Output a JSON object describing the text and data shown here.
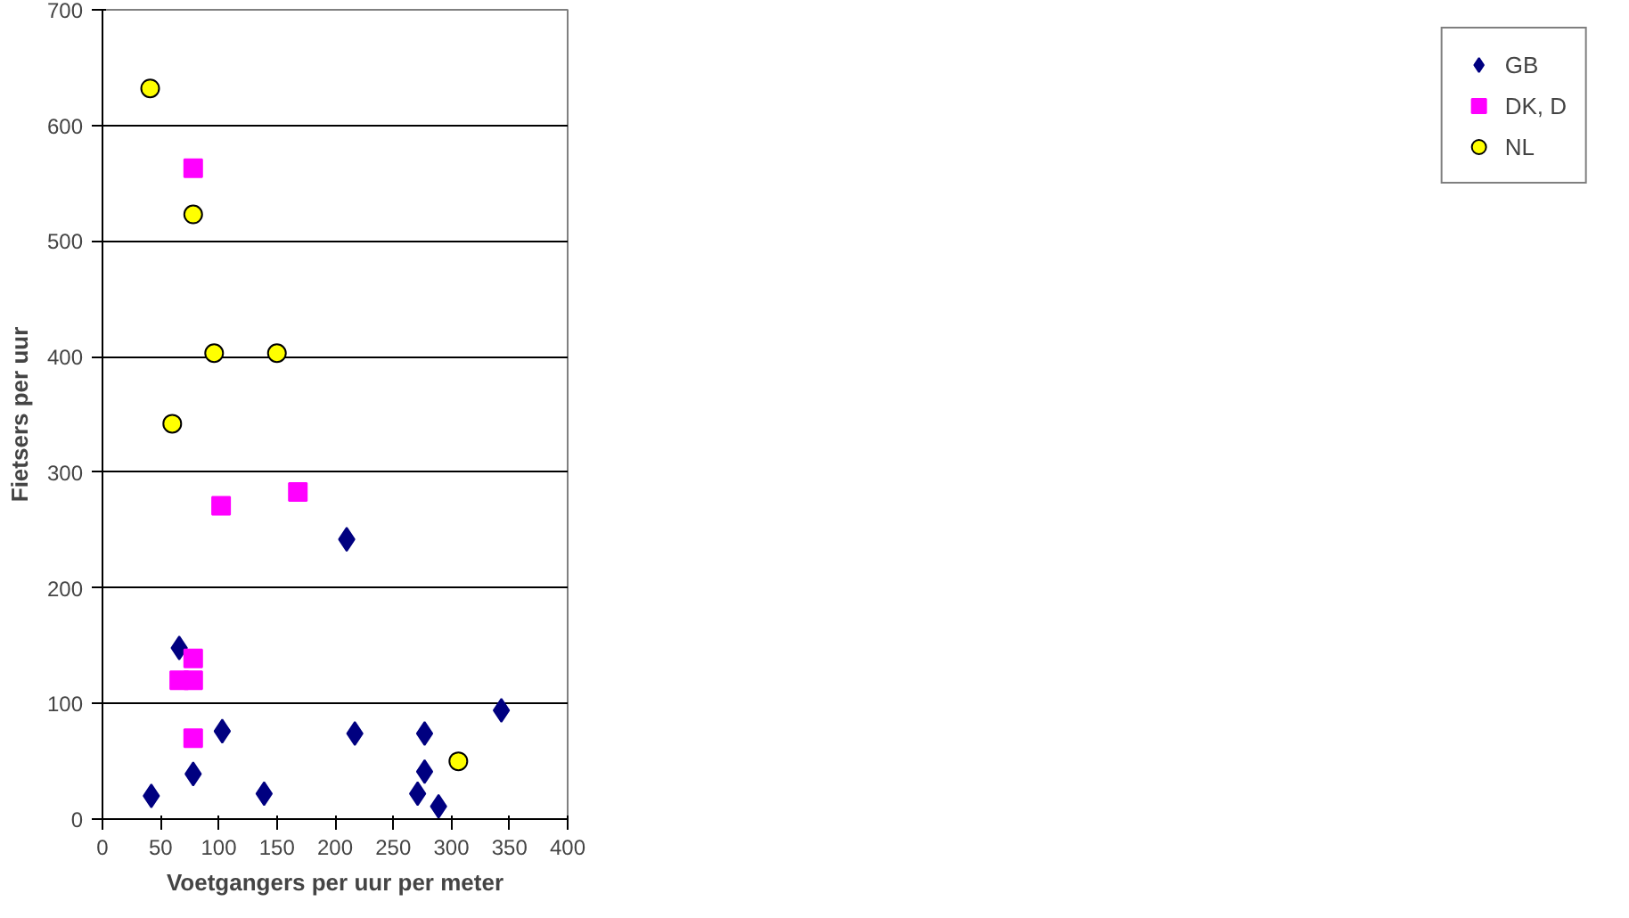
{
  "chart_data": {
    "type": "scatter",
    "xlabel": "Voetgangers per uur per meter",
    "ylabel": "Fietsers per uur",
    "xlim": [
      0,
      400
    ],
    "xticks": [
      0,
      50,
      100,
      150,
      200,
      250,
      300,
      350,
      400
    ],
    "ylim": [
      0,
      700
    ],
    "yticks": [
      0,
      100,
      200,
      300,
      400,
      500,
      600,
      700
    ],
    "grid": "y",
    "legend": "right",
    "series": [
      {
        "name": "GB",
        "color": "#000080",
        "marker": "diamond",
        "x": [
          42,
          66,
          78,
          103,
          139,
          210,
          217,
          271,
          277,
          277,
          289,
          343
        ],
        "values": [
          20,
          148,
          39,
          76,
          22,
          242,
          74,
          22,
          74,
          41,
          11,
          94
        ]
      },
      {
        "name": "DK, D",
        "color": "#ff00ff",
        "marker": "square",
        "x": [
          78,
          66,
          78,
          78,
          78,
          102,
          168
        ],
        "values": [
          563,
          120,
          139,
          120,
          70,
          271,
          283
        ]
      },
      {
        "name": "NL",
        "color": "#ffff00",
        "marker": "circle",
        "x": [
          41,
          78,
          60,
          96,
          150,
          306
        ],
        "values": [
          632,
          523,
          342,
          403,
          403,
          50
        ]
      }
    ]
  }
}
